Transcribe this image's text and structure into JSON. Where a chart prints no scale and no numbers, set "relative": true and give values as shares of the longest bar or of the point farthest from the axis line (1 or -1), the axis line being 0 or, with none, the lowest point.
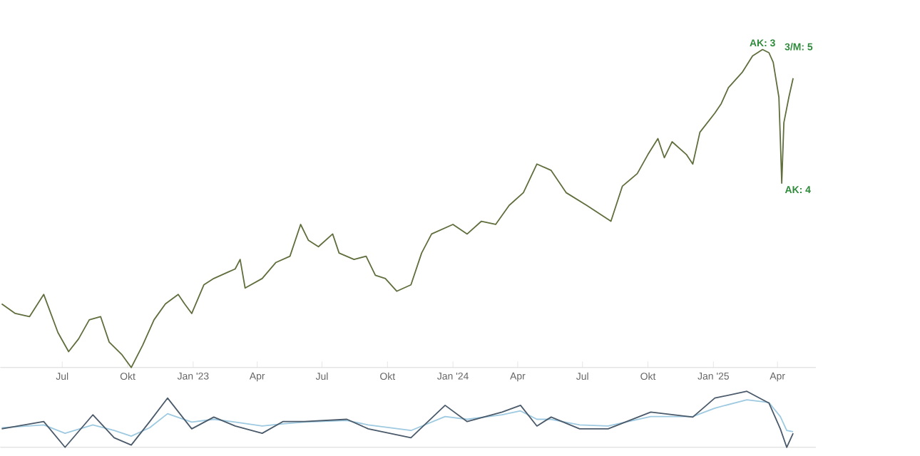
{
  "chart_data": [
    {
      "type": "line",
      "relative": true,
      "color": "#5f6e3c",
      "x": [
        "2022-04-07",
        "2022-04-26",
        "2022-05-16",
        "2022-06-05",
        "2022-06-25",
        "2022-07-10",
        "2022-07-24",
        "2022-08-08",
        "2022-08-24",
        "2022-09-05",
        "2022-09-23",
        "2022-10-06",
        "2022-10-22",
        "2022-11-07",
        "2022-11-23",
        "2022-12-11",
        "2022-12-20",
        "2022-12-30",
        "2023-01-16",
        "2023-01-30",
        "2023-02-19",
        "2023-03-01",
        "2023-03-08",
        "2023-03-15",
        "2023-04-08",
        "2023-04-27",
        "2023-05-17",
        "2023-06-01",
        "2023-06-12",
        "2023-06-26",
        "2023-07-16",
        "2023-07-25",
        "2023-08-15",
        "2023-09-01",
        "2023-09-14",
        "2023-09-28",
        "2023-10-14",
        "2023-11-03",
        "2023-11-18",
        "2023-12-02",
        "2024-01-01",
        "2024-01-21",
        "2024-02-10",
        "2024-03-01",
        "2024-03-20",
        "2024-04-09",
        "2024-04-28",
        "2024-05-18",
        "2024-06-08",
        "2024-07-07",
        "2024-08-10",
        "2024-08-26",
        "2024-09-16",
        "2024-10-01",
        "2024-10-15",
        "2024-10-24",
        "2024-11-04",
        "2024-11-24",
        "2024-12-03",
        "2024-12-13",
        "2025-01-03",
        "2025-01-12",
        "2025-01-22",
        "2025-02-11",
        "2025-02-25",
        "2025-03-11",
        "2025-03-20",
        "2025-03-26",
        "2025-04-03",
        "2025-04-05",
        "2025-04-07",
        "2025-04-10",
        "2025-04-17",
        "2025-04-23"
      ],
      "values": [
        0.2,
        0.17,
        0.16,
        0.23,
        0.11,
        0.05,
        0.09,
        0.15,
        0.16,
        0.08,
        0.04,
        0,
        0.07,
        0.15,
        0.2,
        0.23,
        0.2,
        0.17,
        0.26,
        0.28,
        0.3,
        0.31,
        0.34,
        0.25,
        0.28,
        0.33,
        0.35,
        0.45,
        0.4,
        0.38,
        0.42,
        0.36,
        0.34,
        0.35,
        0.29,
        0.28,
        0.24,
        0.26,
        0.36,
        0.42,
        0.45,
        0.42,
        0.46,
        0.45,
        0.51,
        0.55,
        0.64,
        0.62,
        0.55,
        0.51,
        0.46,
        0.57,
        0.61,
        0.67,
        0.72,
        0.66,
        0.71,
        0.67,
        0.64,
        0.74,
        0.8,
        0.83,
        0.88,
        0.93,
        0.98,
        1,
        0.99,
        0.96,
        0.85,
        0.72,
        0.58,
        0.77,
        0.85,
        0.91
      ],
      "xlim": [
        "2022-04-05",
        "2025-05-25"
      ],
      "xticks": [
        {
          "value": "2022-07-01",
          "label": "Jul"
        },
        {
          "value": "2022-10-01",
          "label": "Okt"
        },
        {
          "value": "2023-01-01",
          "label": "Jan '23"
        },
        {
          "value": "2023-04-01",
          "label": "Apr"
        },
        {
          "value": "2023-07-01",
          "label": "Jul"
        },
        {
          "value": "2023-10-01",
          "label": "Okt"
        },
        {
          "value": "2024-01-01",
          "label": "Jan '24"
        },
        {
          "value": "2024-04-01",
          "label": "Apr"
        },
        {
          "value": "2024-07-01",
          "label": "Jul"
        },
        {
          "value": "2024-10-01",
          "label": "Okt"
        },
        {
          "value": "2025-01-01",
          "label": "Jan '25"
        },
        {
          "value": "2025-04-01",
          "label": "Apr"
        }
      ],
      "annotations": [
        {
          "text": "AK: 3",
          "x": "2025-03-11",
          "y": 1
        },
        {
          "text": "AK: 4",
          "x": "2025-04-07",
          "y": 0.58
        },
        "3/M: 5"
      ]
    },
    {
      "type": "line",
      "relative": true,
      "xlim": [
        "2022-04-05",
        "2025-05-25"
      ],
      "x": [
        "2022-04-07",
        "2022-06-05",
        "2022-07-05",
        "2022-08-13",
        "2022-09-12",
        "2022-10-06",
        "2022-11-01",
        "2022-11-26",
        "2022-12-30",
        "2023-01-30",
        "2023-03-01",
        "2023-04-08",
        "2023-05-07",
        "2023-06-06",
        "2023-08-05",
        "2023-09-04",
        "2023-11-03",
        "2023-12-21",
        "2024-01-21",
        "2024-03-10",
        "2024-04-05",
        "2024-04-28",
        "2024-05-18",
        "2024-06-27",
        "2024-08-06",
        "2024-10-05",
        "2024-12-03",
        "2025-01-03",
        "2025-02-17",
        "2025-03-20",
        "2025-04-05",
        "2025-04-14",
        "2025-04-23"
      ],
      "series": [
        {
          "color": "#9ecae1",
          "values": [
            0.35,
            0.4,
            0.25,
            0.4,
            0.3,
            0.2,
            0.35,
            0.6,
            0.45,
            0.5,
            0.45,
            0.38,
            0.42,
            0.45,
            0.48,
            0.4,
            0.3,
            0.55,
            0.5,
            0.58,
            0.65,
            0.5,
            0.5,
            0.4,
            0.38,
            0.55,
            0.55,
            0.7,
            0.85,
            0.8,
            0.55,
            0.3,
            0.28
          ]
        },
        {
          "color": "#4a5a6a",
          "values": [
            0.33,
            0.46,
            0,
            0.58,
            0.17,
            0.04,
            0.46,
            0.88,
            0.33,
            0.54,
            0.38,
            0.25,
            0.46,
            0.46,
            0.5,
            0.33,
            0.17,
            0.75,
            0.46,
            0.63,
            0.75,
            0.38,
            0.54,
            0.33,
            0.33,
            0.63,
            0.54,
            0.88,
            1,
            0.79,
            0.33,
            0,
            0.25
          ]
        }
      ]
    }
  ]
}
